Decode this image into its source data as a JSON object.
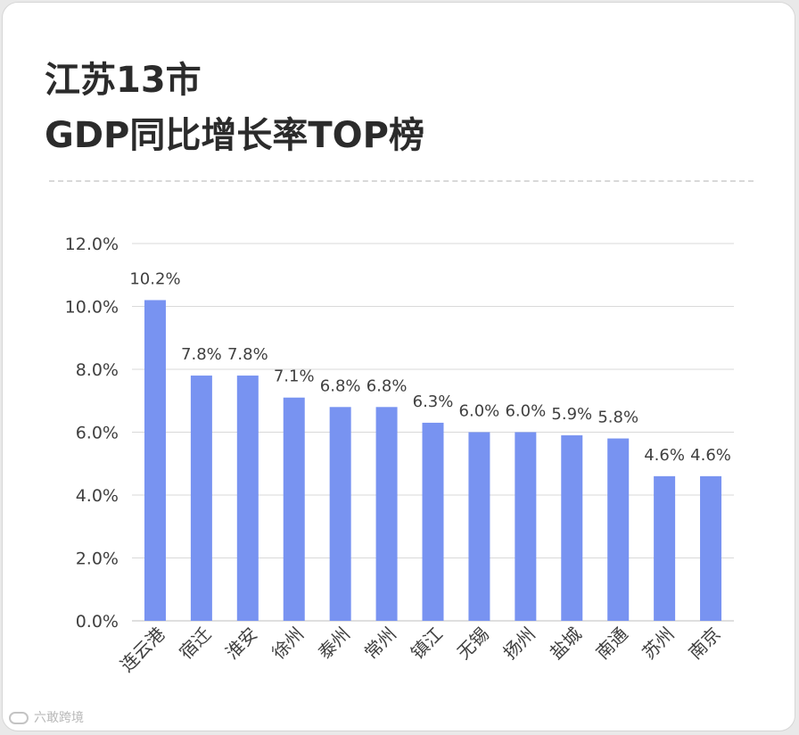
{
  "title_line1": "江苏13市",
  "title_line2": "GDP同比增长率TOP榜",
  "watermark": "六敢跨境",
  "chart_data": {
    "type": "bar",
    "categories": [
      "连云港",
      "宿迁",
      "淮安",
      "徐州",
      "泰州",
      "常州",
      "镇江",
      "无锡",
      "扬州",
      "盐城",
      "南通",
      "苏州",
      "南京"
    ],
    "values": [
      10.2,
      7.8,
      7.8,
      7.1,
      6.8,
      6.8,
      6.3,
      6.0,
      6.0,
      5.9,
      5.8,
      4.6,
      4.6
    ],
    "data_labels": [
      "10.2%",
      "7.8%",
      "7.8%",
      "7.1%",
      "6.8%",
      "6.8%",
      "6.3%",
      "6.0%",
      "6.0%",
      "5.9%",
      "5.8%",
      "4.6%",
      "4.6%"
    ],
    "yticks": [
      "0.0%",
      "2.0%",
      "4.0%",
      "6.0%",
      "8.0%",
      "10.0%",
      "12.0%"
    ],
    "ylim": [
      0,
      12
    ],
    "grid": true,
    "bar_color": "#7893f1",
    "grid_color": "#d9d9d9",
    "text_color": "#404040"
  }
}
